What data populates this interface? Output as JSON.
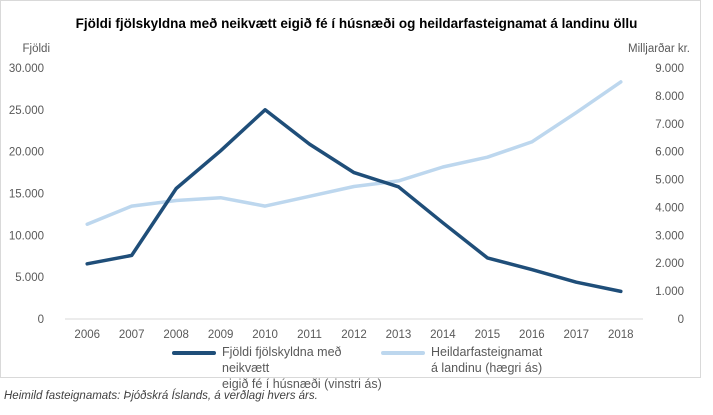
{
  "chart_data": {
    "type": "line",
    "title": "Fjöldi fjölskyldna með neikvætt eigið fé í húsnæði og heildarfasteignamat á landinu öllu",
    "ylabel_left": "Fjöldi",
    "ylabel_right": "Milljarðar kr.",
    "categories": [
      "2006",
      "2007",
      "2008",
      "2009",
      "2010",
      "2011",
      "2012",
      "2013",
      "2014",
      "2015",
      "2016",
      "2017",
      "2018"
    ],
    "ylim_left": [
      0,
      30000
    ],
    "ylim_right": [
      0,
      9000
    ],
    "yticks_left": [
      "0",
      "5.000",
      "10.000",
      "15.000",
      "20.000",
      "25.000",
      "30.000"
    ],
    "yticks_right": [
      "0",
      "1.000",
      "2.000",
      "3.000",
      "4.000",
      "5.000",
      "6.000",
      "7.000",
      "8.000",
      "9.000"
    ],
    "grid": true,
    "legend_position": "bottom",
    "series": [
      {
        "name": "Fjöldi fjölskyldna með neikvætt eigið fé í húsnæði (vinstri ás)",
        "axis": "left",
        "color": "#1f4e79",
        "values": [
          6600,
          7600,
          15600,
          20100,
          25000,
          20900,
          17500,
          15800,
          11500,
          7300,
          5900,
          4400,
          3300
        ]
      },
      {
        "name": "Heildarfasteignamat á landinu (hægri ás)",
        "axis": "right",
        "color": "#bdd7ee",
        "values": [
          3400,
          4050,
          4250,
          4350,
          4050,
          4400,
          4750,
          4950,
          5450,
          5800,
          6350,
          7400,
          8500
        ]
      }
    ]
  },
  "legend": {
    "series1_line1": "Fjöldi fjölskyldna með neikvætt",
    "series1_line2": "eigið fé í húsnæði (vinstri ás)",
    "series2_line1": "Heildarfasteignamat",
    "series2_line2": "á landinu (hægri ás)"
  },
  "source": "Heimild fasteignamats: Þjóðskrá Íslands, á verðlagi hvers árs."
}
